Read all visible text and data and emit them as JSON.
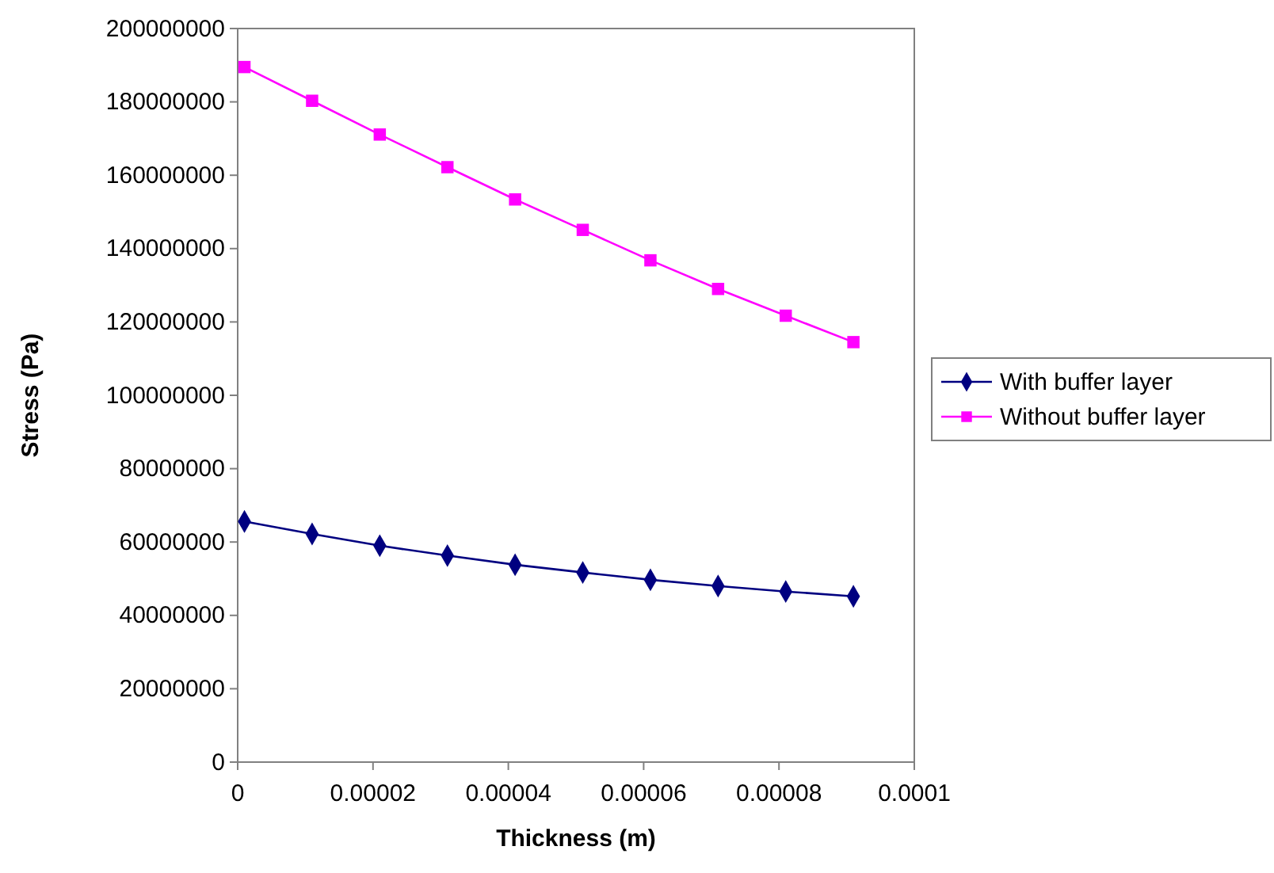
{
  "chart_data": {
    "type": "line",
    "xlabel": "Thickness (m)",
    "ylabel": "Stress (Pa)",
    "x": [
      1e-06,
      1.1e-05,
      2.1e-05,
      3.1e-05,
      4.1e-05,
      5.1e-05,
      6.1e-05,
      7.1e-05,
      8.1e-05,
      9.1e-05
    ],
    "series": [
      {
        "name": "With buffer layer",
        "color": "#000080",
        "marker": "diamond",
        "values": [
          65600000,
          62200000,
          59000000,
          56300000,
          53800000,
          51700000,
          49700000,
          48000000,
          46500000,
          45200000
        ]
      },
      {
        "name": "Without buffer layer",
        "color": "#ff00ff",
        "marker": "square",
        "values": [
          189500000,
          180300000,
          171100000,
          162200000,
          153400000,
          145100000,
          136800000,
          129000000,
          121700000,
          114500000
        ]
      }
    ],
    "xlim": [
      0,
      0.0001
    ],
    "xticks": [
      0,
      {
        "value": 2e-05,
        "label": "0.00002"
      },
      {
        "value": 4e-05,
        "label": "0.00004"
      },
      {
        "value": 6e-05,
        "label": "0.00006"
      },
      {
        "value": 8e-05,
        "label": "0.00008"
      },
      0.0001
    ],
    "ylim": [
      0,
      200000000
    ],
    "yticks": [
      0,
      20000000,
      40000000,
      60000000,
      80000000,
      100000000,
      120000000,
      140000000,
      160000000,
      180000000,
      200000000
    ],
    "grid": false,
    "legend": "right",
    "line_style": "solid"
  }
}
